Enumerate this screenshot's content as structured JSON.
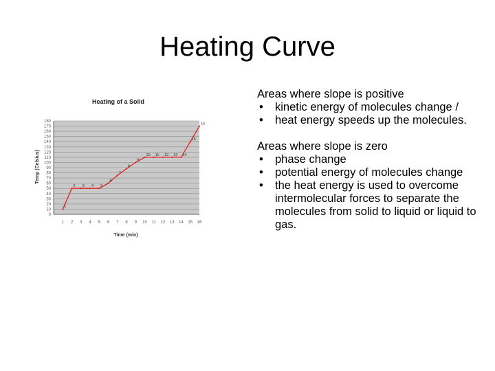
{
  "slide": {
    "title": "Heating Curve"
  },
  "chart_data": {
    "type": "line",
    "title": "Heating of a Solid",
    "xlabel": "Time (min)",
    "ylabel": "Temp (Celsius)",
    "xlim": [
      0,
      16
    ],
    "ylim": [
      0,
      180
    ],
    "x_ticks": [
      1,
      2,
      3,
      4,
      5,
      6,
      7,
      8,
      9,
      10,
      11,
      12,
      13,
      14,
      15,
      16
    ],
    "y_ticks": [
      0,
      10,
      20,
      30,
      40,
      50,
      60,
      70,
      80,
      90,
      100,
      110,
      120,
      130,
      140,
      150,
      160,
      170,
      180
    ],
    "grid": "horizontal",
    "series": [
      {
        "color": "#e02020",
        "x": [
          1,
          2,
          3,
          4,
          5,
          6,
          7,
          8,
          9,
          10,
          11,
          12,
          13,
          14,
          15,
          16
        ],
        "y": [
          10,
          50,
          50,
          50,
          50,
          60,
          75,
          88,
          100,
          110,
          110,
          110,
          110,
          110,
          140,
          170
        ],
        "point_labels": [
          "1",
          "2",
          "3",
          "4",
          "5",
          "6",
          "7",
          "8",
          "9",
          "10",
          "11",
          "12",
          "13",
          "14",
          "15",
          "16"
        ]
      }
    ]
  },
  "text": {
    "positive": {
      "heading": "Areas where slope is positive",
      "items": [
        "kinetic energy of molecules change /",
        "heat energy speeds up the molecules."
      ]
    },
    "zero": {
      "heading": "Areas where slope is zero",
      "items": [
        "phase change",
        "potential energy of molecules change",
        "the heat energy is used to overcome intermolecular forces to separate the molecules from solid to liquid or liquid to gas."
      ]
    }
  }
}
